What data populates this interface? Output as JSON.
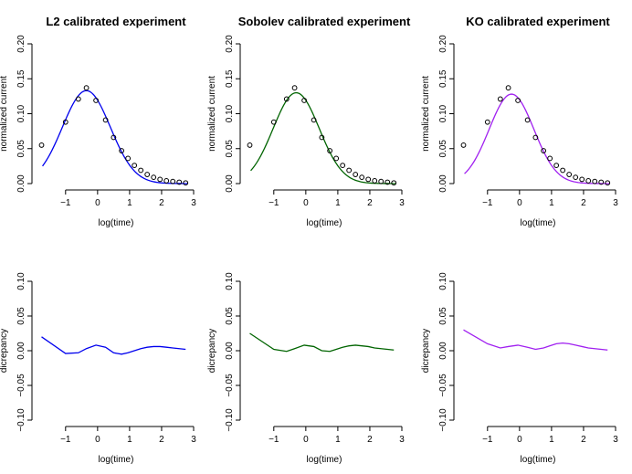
{
  "chart_data": [
    {
      "type": "scatter+line",
      "title": "L2 calibrated experiment",
      "xlabel": "log(time)",
      "ylabel": "normalized current",
      "xlim": [
        -1.85,
        3.0
      ],
      "ylim": [
        0.0,
        0.2
      ],
      "xticks": [
        -1,
        0,
        1,
        2,
        3
      ],
      "yticks": [
        0.0,
        0.05,
        0.1,
        0.15,
        0.2
      ],
      "xtick_labels": [
        "−1",
        "0",
        "1",
        "2",
        "3"
      ],
      "ytick_labels": [
        "0.00",
        "0.05",
        "0.10",
        "0.15",
        "0.20"
      ],
      "line_color": "#0000ee",
      "points": {
        "x": [
          -1.75,
          -1.0,
          -0.6,
          -0.35,
          -0.05,
          0.25,
          0.5,
          0.75,
          0.95,
          1.15,
          1.35,
          1.55,
          1.75,
          1.95,
          2.15,
          2.35,
          2.55,
          2.75
        ],
        "y": [
          0.055,
          0.088,
          0.121,
          0.137,
          0.119,
          0.091,
          0.066,
          0.047,
          0.036,
          0.026,
          0.019,
          0.013,
          0.009,
          0.006,
          0.004,
          0.003,
          0.002,
          0.001
        ]
      },
      "curve": {
        "mu": -0.35,
        "sigma": 0.75,
        "peak": 0.133
      }
    },
    {
      "type": "scatter+line",
      "title": "Sobolev calibrated experiment",
      "xlabel": "log(time)",
      "ylabel": "normalized current",
      "xlim": [
        -1.85,
        3.0
      ],
      "ylim": [
        0.0,
        0.2
      ],
      "xticks": [
        -1,
        0,
        1,
        2,
        3
      ],
      "yticks": [
        0.0,
        0.05,
        0.1,
        0.15,
        0.2
      ],
      "xtick_labels": [
        "−1",
        "0",
        "1",
        "2",
        "3"
      ],
      "ytick_labels": [
        "0.00",
        "0.05",
        "0.10",
        "0.15",
        "0.20"
      ],
      "line_color": "#006400",
      "points": {
        "x": [
          -1.75,
          -1.0,
          -0.6,
          -0.35,
          -0.05,
          0.25,
          0.5,
          0.75,
          0.95,
          1.15,
          1.35,
          1.55,
          1.75,
          1.95,
          2.15,
          2.35,
          2.55,
          2.75
        ],
        "y": [
          0.055,
          0.088,
          0.121,
          0.137,
          0.119,
          0.091,
          0.066,
          0.047,
          0.036,
          0.026,
          0.019,
          0.013,
          0.009,
          0.006,
          0.004,
          0.003,
          0.002,
          0.001
        ]
      },
      "curve": {
        "mu": -0.3,
        "sigma": 0.72,
        "peak": 0.13
      }
    },
    {
      "type": "scatter+line",
      "title": "KO calibrated experiment",
      "xlabel": "log(time)",
      "ylabel": "normalized current",
      "xlim": [
        -1.85,
        3.0
      ],
      "ylim": [
        0.0,
        0.2
      ],
      "xticks": [
        -1,
        0,
        1,
        2,
        3
      ],
      "yticks": [
        0.0,
        0.05,
        0.1,
        0.15,
        0.2
      ],
      "xtick_labels": [
        "−1",
        "0",
        "1",
        "2",
        "3"
      ],
      "ytick_labels": [
        "0.00",
        "0.05",
        "0.10",
        "0.15",
        "0.20"
      ],
      "line_color": "#a020f0",
      "points": {
        "x": [
          -1.75,
          -1.0,
          -0.6,
          -0.35,
          -0.05,
          0.25,
          0.5,
          0.75,
          0.95,
          1.15,
          1.35,
          1.55,
          1.75,
          1.95,
          2.15,
          2.35,
          2.55,
          2.75
        ],
        "y": [
          0.055,
          0.088,
          0.121,
          0.137,
          0.119,
          0.091,
          0.066,
          0.047,
          0.036,
          0.026,
          0.019,
          0.013,
          0.009,
          0.006,
          0.004,
          0.003,
          0.002,
          0.001
        ]
      },
      "curve": {
        "mu": -0.25,
        "sigma": 0.7,
        "peak": 0.128
      }
    },
    {
      "type": "line",
      "title": "",
      "xlabel": "log(time)",
      "ylabel": "dicrepancy",
      "xlim": [
        -1.85,
        3.0
      ],
      "ylim": [
        -0.1,
        0.1
      ],
      "xticks": [
        -1,
        0,
        1,
        2,
        3
      ],
      "yticks": [
        -0.1,
        -0.05,
        0.0,
        0.05,
        0.1
      ],
      "xtick_labels": [
        "−1",
        "0",
        "1",
        "2",
        "3"
      ],
      "ytick_labels": [
        "−0.10",
        "−0.05",
        "0.00",
        "0.05",
        "0.10"
      ],
      "line_color": "#0000ee",
      "series": [
        {
          "x": [
            -1.75,
            -1.0,
            -0.6,
            -0.35,
            -0.05,
            0.25,
            0.5,
            0.75,
            0.95,
            1.15,
            1.35,
            1.55,
            1.75,
            1.95,
            2.15,
            2.35,
            2.55,
            2.75
          ],
          "y": [
            0.02,
            -0.004,
            -0.003,
            0.003,
            0.008,
            0.005,
            -0.003,
            -0.005,
            -0.003,
            0.0,
            0.003,
            0.005,
            0.006,
            0.006,
            0.005,
            0.004,
            0.003,
            0.002
          ]
        }
      ]
    },
    {
      "type": "line",
      "title": "",
      "xlabel": "log(time)",
      "ylabel": "dicrepancy",
      "xlim": [
        -1.85,
        3.0
      ],
      "ylim": [
        -0.1,
        0.1
      ],
      "xticks": [
        -1,
        0,
        1,
        2,
        3
      ],
      "yticks": [
        -0.1,
        -0.05,
        0.0,
        0.05,
        0.1
      ],
      "xtick_labels": [
        "−1",
        "0",
        "1",
        "2",
        "3"
      ],
      "ytick_labels": [
        "−0.10",
        "−0.05",
        "0.00",
        "0.05",
        "0.10"
      ],
      "line_color": "#006400",
      "series": [
        {
          "x": [
            -1.75,
            -1.0,
            -0.6,
            -0.35,
            -0.05,
            0.25,
            0.5,
            0.75,
            0.95,
            1.15,
            1.35,
            1.55,
            1.75,
            1.95,
            2.15,
            2.35,
            2.55,
            2.75
          ],
          "y": [
            0.025,
            0.002,
            -0.001,
            0.003,
            0.008,
            0.006,
            0.0,
            -0.001,
            0.002,
            0.005,
            0.007,
            0.008,
            0.007,
            0.006,
            0.004,
            0.003,
            0.002,
            0.001
          ]
        }
      ]
    },
    {
      "type": "line",
      "title": "",
      "xlabel": "log(time)",
      "ylabel": "dicrepancy",
      "xlim": [
        -1.85,
        3.0
      ],
      "ylim": [
        -0.1,
        0.1
      ],
      "xticks": [
        -1,
        0,
        1,
        2,
        3
      ],
      "yticks": [
        -0.1,
        -0.05,
        0.0,
        0.05,
        0.1
      ],
      "xtick_labels": [
        "−1",
        "0",
        "1",
        "2",
        "3"
      ],
      "ytick_labels": [
        "−0.10",
        "−0.05",
        "0.00",
        "0.05",
        "0.10"
      ],
      "line_color": "#a020f0",
      "series": [
        {
          "x": [
            -1.75,
            -1.0,
            -0.6,
            -0.35,
            -0.05,
            0.25,
            0.5,
            0.75,
            0.95,
            1.15,
            1.35,
            1.55,
            1.75,
            1.95,
            2.15,
            2.35,
            2.55,
            2.75
          ],
          "y": [
            0.03,
            0.01,
            0.004,
            0.006,
            0.008,
            0.005,
            0.002,
            0.004,
            0.007,
            0.01,
            0.011,
            0.01,
            0.008,
            0.006,
            0.004,
            0.003,
            0.002,
            0.001
          ]
        }
      ]
    }
  ]
}
